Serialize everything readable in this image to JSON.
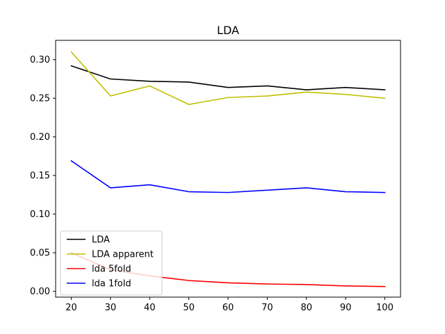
{
  "chart_data": {
    "type": "line",
    "title": "LDA",
    "xlabel": "",
    "ylabel": "",
    "x": [
      20,
      30,
      40,
      50,
      60,
      70,
      80,
      90,
      100
    ],
    "xticks": [
      20,
      30,
      40,
      50,
      60,
      70,
      80,
      90,
      100
    ],
    "yticks": [
      0.0,
      0.05,
      0.1,
      0.15,
      0.2,
      0.25,
      0.3
    ],
    "ytick_labels": [
      "0.00",
      "0.05",
      "0.10",
      "0.15",
      "0.20",
      "0.25",
      "0.30"
    ],
    "xlim": [
      16,
      104
    ],
    "ylim": [
      -0.0075,
      0.325
    ],
    "grid": false,
    "legend_position": "lower-left",
    "series": [
      {
        "name": "LDA",
        "color": "#000000",
        "values": [
          0.292,
          0.275,
          0.272,
          0.271,
          0.264,
          0.266,
          0.261,
          0.264,
          0.261
        ]
      },
      {
        "name": "LDA apparent",
        "color": "#bfbf00",
        "values": [
          0.31,
          0.253,
          0.266,
          0.242,
          0.251,
          0.253,
          0.258,
          0.255,
          0.25
        ]
      },
      {
        "name": "lda 5fold",
        "color": "#ff0000",
        "values": [
          0.05,
          0.028,
          0.02,
          0.014,
          0.011,
          0.0095,
          0.0088,
          0.007,
          0.0062
        ]
      },
      {
        "name": "lda 1fold",
        "color": "#0000ff",
        "values": [
          0.169,
          0.134,
          0.138,
          0.129,
          0.128,
          0.131,
          0.134,
          0.129,
          0.128
        ]
      }
    ]
  }
}
